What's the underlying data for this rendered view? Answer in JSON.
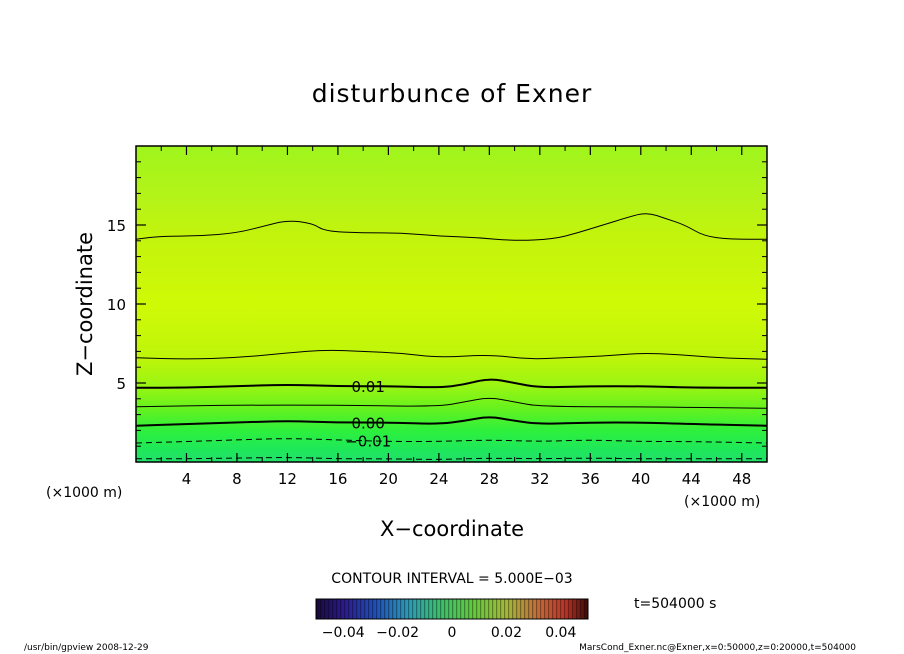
{
  "chart_data": {
    "type": "heatmap",
    "title": "disturbunce of Exner",
    "xlabel": "X−coordinate",
    "ylabel": "Z−coordinate",
    "x_unit_left": "(×1000 m)",
    "x_unit_right": "(×1000 m)",
    "xlim": [
      0,
      50
    ],
    "ylim": [
      0,
      20
    ],
    "x_ticks": [
      4,
      8,
      12,
      16,
      20,
      24,
      28,
      32,
      36,
      40,
      44,
      48
    ],
    "x_tick_labels": [
      "4",
      "8",
      "12",
      "16",
      "20",
      "24",
      "28",
      "32",
      "36",
      "40",
      "44",
      "48"
    ],
    "y_ticks": [
      5,
      10,
      15
    ],
    "y_tick_labels": [
      "5",
      "10",
      "15"
    ],
    "contours": [
      {
        "label": "",
        "style": "dashed",
        "points": [
          [
            0,
            0.2
          ],
          [
            4,
            0.2
          ],
          [
            8,
            0.25
          ],
          [
            12,
            0.3
          ],
          [
            16,
            0.2
          ],
          [
            20,
            0.2
          ],
          [
            24,
            0.15
          ],
          [
            28,
            0.25
          ],
          [
            32,
            0.2
          ],
          [
            36,
            0.25
          ],
          [
            40,
            0.2
          ],
          [
            44,
            0.2
          ],
          [
            50,
            0.2
          ]
        ]
      },
      {
        "label": "−0.01",
        "style": "dashed",
        "points": [
          [
            0,
            1.2
          ],
          [
            4,
            1.3
          ],
          [
            8,
            1.4
          ],
          [
            12,
            1.5
          ],
          [
            16,
            1.4
          ],
          [
            20,
            1.3
          ],
          [
            24,
            1.3
          ],
          [
            28,
            1.4
          ],
          [
            32,
            1.3
          ],
          [
            36,
            1.4
          ],
          [
            40,
            1.3
          ],
          [
            44,
            1.3
          ],
          [
            50,
            1.2
          ]
        ]
      },
      {
        "label": "0.00",
        "style": "solid-bold",
        "points": [
          [
            0,
            2.3
          ],
          [
            4,
            2.4
          ],
          [
            8,
            2.5
          ],
          [
            12,
            2.6
          ],
          [
            16,
            2.5
          ],
          [
            20,
            2.5
          ],
          [
            24,
            2.4
          ],
          [
            26,
            2.6
          ],
          [
            28,
            2.9
          ],
          [
            30,
            2.6
          ],
          [
            32,
            2.4
          ],
          [
            36,
            2.5
          ],
          [
            40,
            2.5
          ],
          [
            44,
            2.4
          ],
          [
            50,
            2.3
          ]
        ]
      },
      {
        "label": "",
        "style": "solid",
        "points": [
          [
            0,
            3.5
          ],
          [
            8,
            3.6
          ],
          [
            16,
            3.6
          ],
          [
            24,
            3.5
          ],
          [
            26,
            3.8
          ],
          [
            28,
            4.1
          ],
          [
            30,
            3.8
          ],
          [
            32,
            3.5
          ],
          [
            40,
            3.5
          ],
          [
            50,
            3.4
          ]
        ]
      },
      {
        "label": "0.01",
        "style": "solid-bold",
        "points": [
          [
            0,
            4.7
          ],
          [
            4,
            4.7
          ],
          [
            8,
            4.8
          ],
          [
            12,
            4.9
          ],
          [
            16,
            4.8
          ],
          [
            20,
            4.8
          ],
          [
            24,
            4.7
          ],
          [
            26,
            4.9
          ],
          [
            28,
            5.3
          ],
          [
            30,
            5.0
          ],
          [
            32,
            4.7
          ],
          [
            36,
            4.8
          ],
          [
            40,
            4.8
          ],
          [
            44,
            4.7
          ],
          [
            50,
            4.7
          ]
        ]
      },
      {
        "label": "",
        "style": "solid",
        "points": [
          [
            0,
            6.6
          ],
          [
            4,
            6.5
          ],
          [
            8,
            6.6
          ],
          [
            12,
            6.9
          ],
          [
            15,
            7.1
          ],
          [
            18,
            7.0
          ],
          [
            21,
            6.9
          ],
          [
            24,
            6.6
          ],
          [
            28,
            6.8
          ],
          [
            31,
            6.5
          ],
          [
            34,
            6.6
          ],
          [
            37,
            6.7
          ],
          [
            40,
            6.9
          ],
          [
            43,
            6.8
          ],
          [
            46,
            6.6
          ],
          [
            50,
            6.5
          ]
        ]
      },
      {
        "label": "",
        "style": "solid",
        "points": [
          [
            0,
            14.1
          ],
          [
            2,
            14.3
          ],
          [
            5,
            14.3
          ],
          [
            8,
            14.5
          ],
          [
            10,
            14.9
          ],
          [
            12,
            15.3
          ],
          [
            14,
            15.1
          ],
          [
            15,
            14.6
          ],
          [
            18,
            14.5
          ],
          [
            21,
            14.5
          ],
          [
            24,
            14.3
          ],
          [
            27,
            14.2
          ],
          [
            30,
            14.0
          ],
          [
            33,
            14.1
          ],
          [
            35,
            14.5
          ],
          [
            37,
            15.0
          ],
          [
            39,
            15.5
          ],
          [
            40.5,
            15.8
          ],
          [
            42,
            15.4
          ],
          [
            43.5,
            15.0
          ],
          [
            45,
            14.3
          ],
          [
            47,
            14.1
          ],
          [
            50,
            14.1
          ]
        ]
      }
    ],
    "colorbar": {
      "ticks": [
        -0.04,
        -0.02,
        0,
        0.02,
        0.04
      ],
      "tick_labels": [
        "−0.04",
        "−0.02",
        "0",
        "0.02",
        "0.04"
      ],
      "range": [
        -0.05,
        0.05
      ]
    },
    "contour_interval_text": "CONTOUR INTERVAL = 5.000E−03",
    "time_text": "t=504000 s"
  },
  "footer": {
    "left": "/usr/bin/gpview   2008-12-29",
    "right": "MarsCond_Exner.nc@Exner,x=0:50000,z=0:20000,t=504000"
  }
}
